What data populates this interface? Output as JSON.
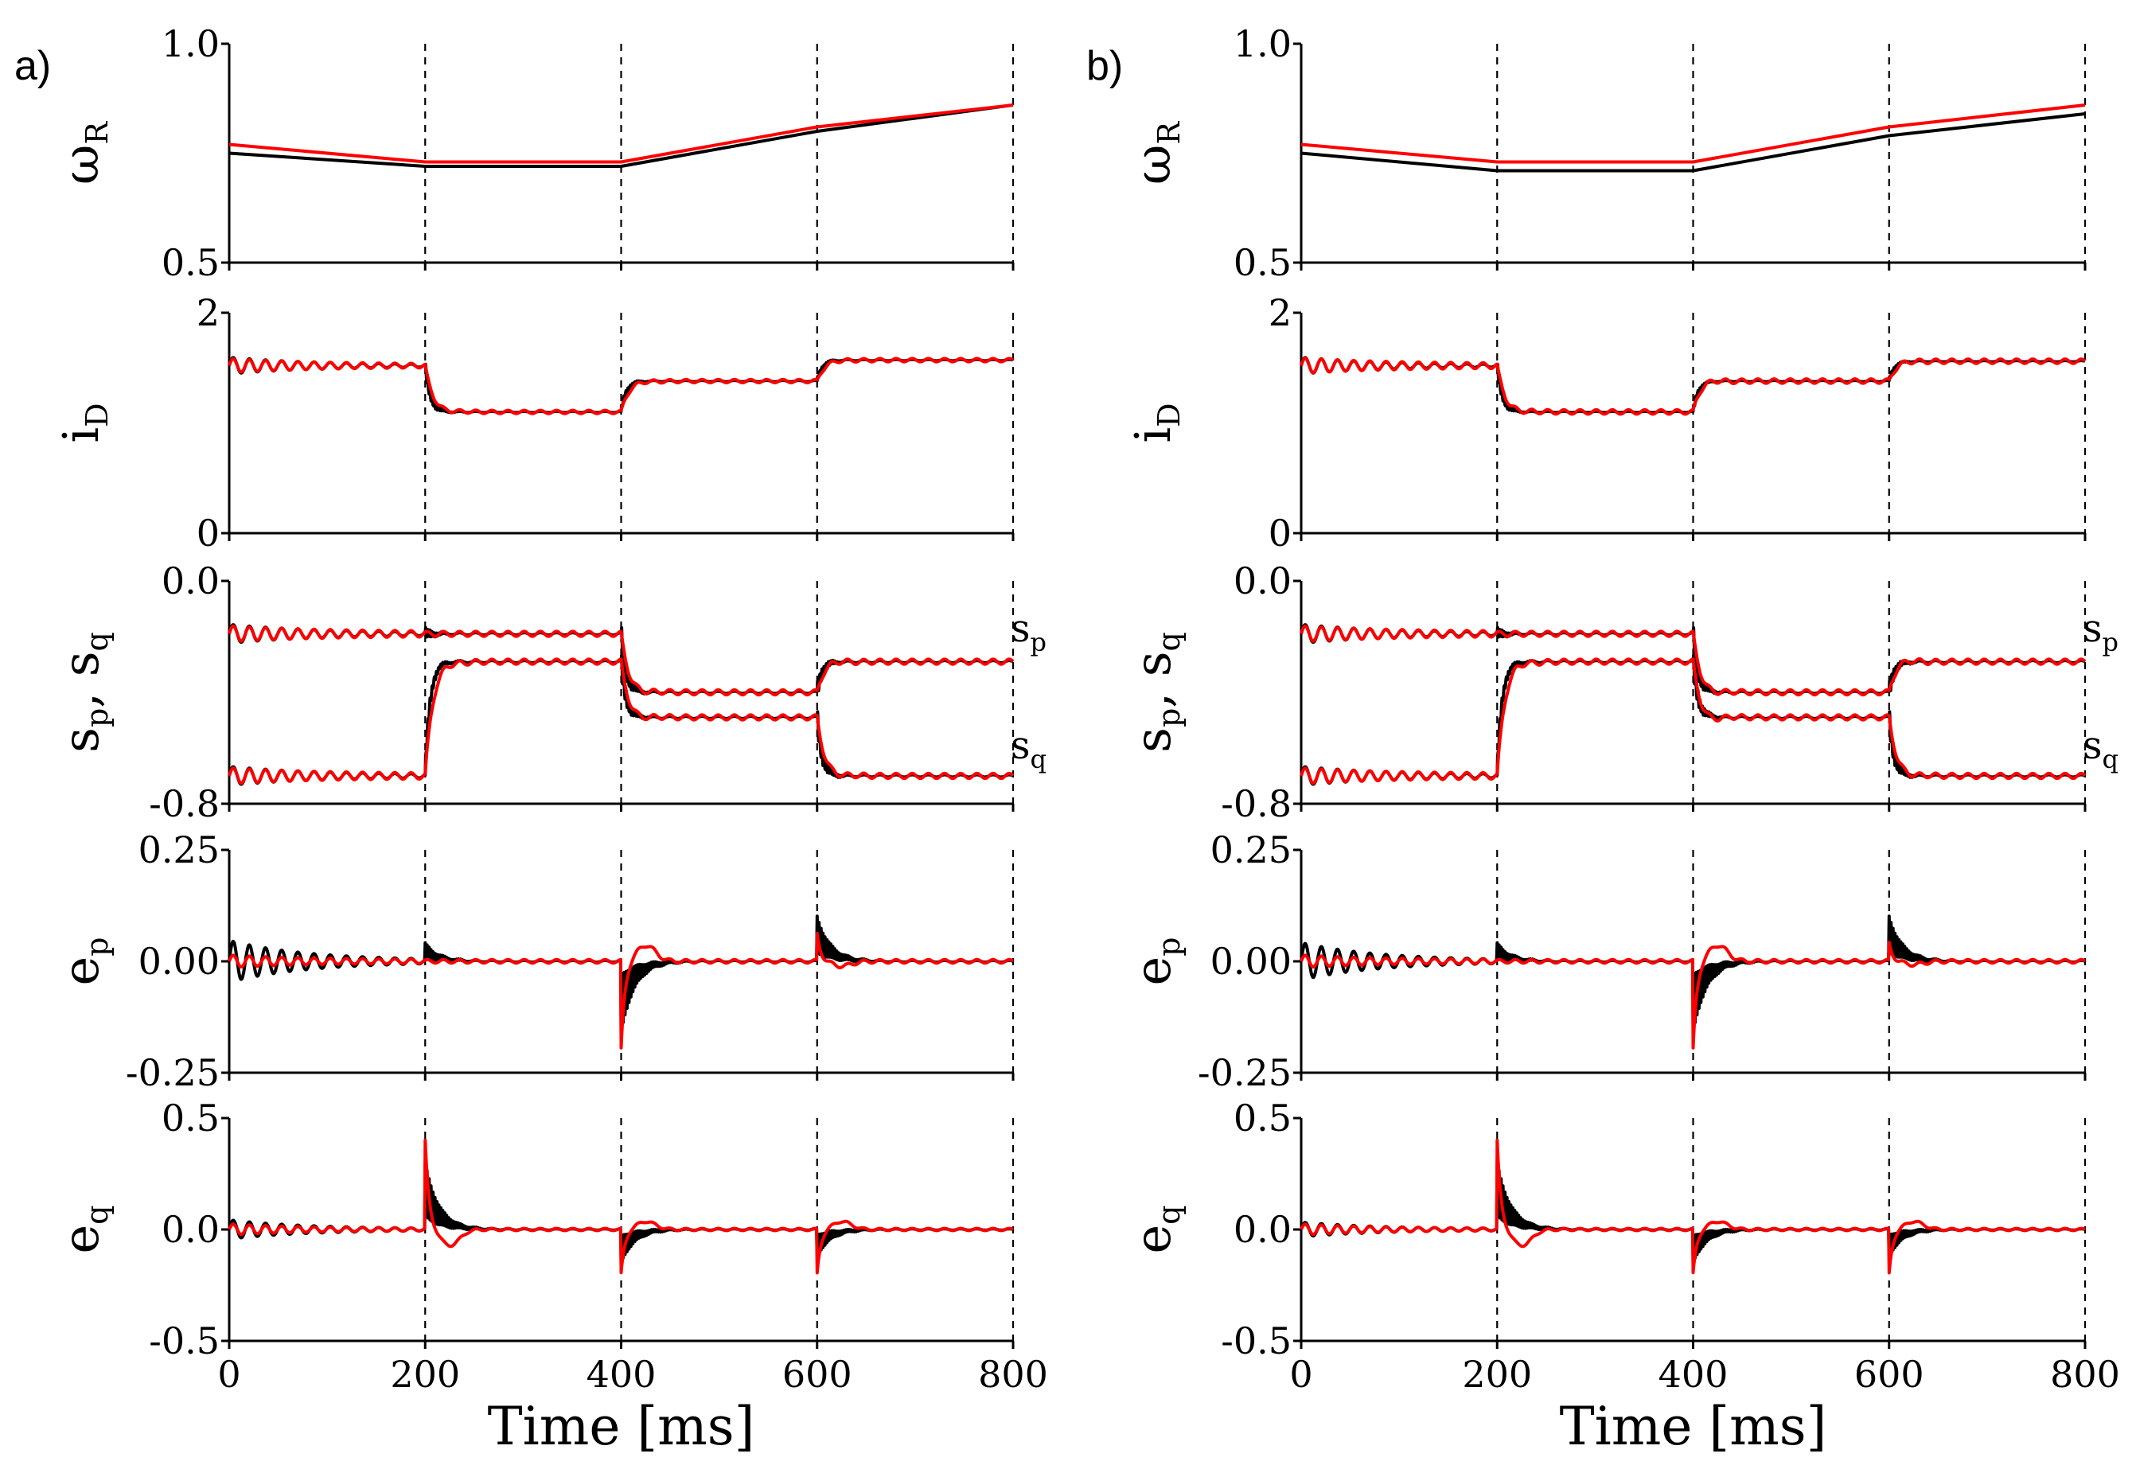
{
  "chart_data": {
    "type": "line",
    "x_label": "Time [ms]",
    "xlim": [
      0,
      800
    ],
    "x_ticks": [
      0,
      200,
      400,
      600,
      800
    ],
    "x_tick_labels": [
      "0",
      "200",
      "400",
      "600",
      "800"
    ],
    "switch_times": [
      200,
      400,
      600,
      800
    ],
    "series_colors": {
      "black": "#000000",
      "red": "#ff0000"
    },
    "panels": [
      {
        "label": "a)",
        "rows": [
          {
            "id": "omega",
            "ylabel_main": "ω",
            "ylabel_sub": "R",
            "ylim": [
              0.5,
              1.0
            ],
            "y_ticks": [
              0.5,
              1.0
            ],
            "y_tick_labels": [
              "0.5",
              "1.0"
            ],
            "series": [
              {
                "name": "black",
                "x": [
                  0,
                  200,
                  400,
                  600,
                  800
                ],
                "y": [
                  0.75,
                  0.72,
                  0.72,
                  0.8,
                  0.86
                ]
              },
              {
                "name": "red",
                "x": [
                  0,
                  200,
                  400,
                  600,
                  800
                ],
                "y": [
                  0.77,
                  0.73,
                  0.73,
                  0.81,
                  0.86
                ]
              }
            ]
          },
          {
            "id": "id",
            "ylabel_main": "i",
            "ylabel_sub": "D",
            "ylim": [
              0,
              2
            ],
            "y_ticks": [
              0,
              2
            ],
            "y_tick_labels": [
              "0",
              "2"
            ],
            "series": [
              {
                "name": "black",
                "levels": [
                  1.52,
                  1.1,
                  1.38,
                  1.57
                ],
                "init_amp": 0.07,
                "jump_amp": [
                  0.0,
                  0.05,
                  0.03,
                  0.02
                ],
                "ripple": 0.006
              },
              {
                "name": "red",
                "levels": [
                  1.52,
                  1.1,
                  1.38,
                  1.57
                ],
                "init_amp": 0.05,
                "jump_amp": [
                  0.0,
                  0.06,
                  0.04,
                  0.03
                ],
                "ripple": 0.015
              }
            ]
          },
          {
            "id": "spsq",
            "ylabel_main": "s",
            "ylabel_text": "s_p, s_q",
            "ylim": [
              -0.8,
              0.0
            ],
            "y_ticks": [
              -0.8,
              0.0
            ],
            "y_tick_labels": [
              "-0.8",
              "0.0"
            ],
            "series": [
              {
                "name": "black sp",
                "levels": [
                  -0.19,
                  -0.19,
                  -0.4,
                  -0.29
                ],
                "init_amp": 0.03,
                "jump_amp": [
                  0.0,
                  0.02,
                  0.04,
                  0.03
                ],
                "ripple": 0.004
              },
              {
                "name": "black sq",
                "levels": [
                  -0.7,
                  -0.29,
                  -0.49,
                  -0.7
                ],
                "init_amp": 0.03,
                "jump_amp": [
                  0.0,
                  0.03,
                  0.04,
                  0.04
                ],
                "ripple": 0.004
              },
              {
                "name": "red sp",
                "levels": [
                  -0.19,
                  -0.19,
                  -0.4,
                  -0.29
                ],
                "init_amp": 0.02,
                "jump_amp": [
                  0.0,
                  0.0,
                  0.04,
                  0.03
                ],
                "ripple": 0.009
              },
              {
                "name": "red sq",
                "levels": [
                  -0.7,
                  -0.29,
                  -0.49,
                  -0.7
                ],
                "init_amp": 0.02,
                "jump_amp": [
                  0.0,
                  0.05,
                  0.05,
                  0.04
                ],
                "ripple": 0.009
              }
            ],
            "annotations": [
              {
                "main": "s",
                "sub": "p",
                "x": 700,
                "y": -0.16
              },
              {
                "main": "s",
                "sub": "q",
                "x": 700,
                "y": -0.58
              }
            ]
          },
          {
            "id": "ep",
            "ylabel_main": "e",
            "ylabel_sub": "p",
            "ylim": [
              -0.25,
              0.25
            ],
            "y_ticks": [
              -0.25,
              0.0,
              0.25
            ],
            "y_tick_labels": [
              "-0.25",
              "0.00",
              "0.25"
            ],
            "series": [
              {
                "name": "black",
                "spikes": [
                  0.04,
                  -0.16,
                  0.1
                ],
                "init_amp": 0.045,
                "ripple": 0.002
              },
              {
                "name": "red",
                "spikes": [
                  0.0,
                  -0.2,
                  0.06
                ],
                "init_amp": 0.01,
                "ripple": 0.004
              }
            ]
          },
          {
            "id": "eq",
            "ylabel_main": "e",
            "ylabel_sub": "q",
            "ylim": [
              -0.5,
              0.5
            ],
            "y_ticks": [
              -0.5,
              0.0,
              0.5
            ],
            "y_tick_labels": [
              "-0.5",
              "0.0",
              "0.5"
            ],
            "series": [
              {
                "name": "black",
                "spikes": [
                  0.3,
                  -0.15,
                  -0.12
                ],
                "init_amp": 0.04,
                "ripple": 0.003
              },
              {
                "name": "red",
                "spikes": [
                  0.4,
                  -0.2,
                  -0.2
                ],
                "init_amp": 0.02,
                "ripple": 0.005
              }
            ]
          }
        ]
      },
      {
        "label": "b)",
        "rows": [
          {
            "id": "omega",
            "ylabel_main": "ω",
            "ylabel_sub": "R",
            "ylim": [
              0.5,
              1.0
            ],
            "y_ticks": [
              0.5,
              1.0
            ],
            "y_tick_labels": [
              "0.5",
              "1.0"
            ],
            "series": [
              {
                "name": "black",
                "x": [
                  0,
                  200,
                  400,
                  600,
                  800
                ],
                "y": [
                  0.75,
                  0.71,
                  0.71,
                  0.79,
                  0.84
                ]
              },
              {
                "name": "red",
                "x": [
                  0,
                  200,
                  400,
                  600,
                  800
                ],
                "y": [
                  0.77,
                  0.73,
                  0.73,
                  0.81,
                  0.86
                ]
              }
            ]
          },
          {
            "id": "id",
            "ylabel_main": "i",
            "ylabel_sub": "D",
            "ylim": [
              0,
              2
            ],
            "y_ticks": [
              0,
              2
            ],
            "y_tick_labels": [
              "0",
              "2"
            ],
            "series": [
              {
                "name": "black",
                "levels": [
                  1.52,
                  1.1,
                  1.38,
                  1.56
                ],
                "init_amp": 0.07,
                "jump_amp": [
                  0.0,
                  0.05,
                  0.03,
                  0.02
                ],
                "ripple": 0.006
              },
              {
                "name": "red",
                "levels": [
                  1.52,
                  1.1,
                  1.38,
                  1.56
                ],
                "init_amp": 0.05,
                "jump_amp": [
                  0.0,
                  0.07,
                  0.08,
                  0.04
                ],
                "ripple": 0.02
              }
            ]
          },
          {
            "id": "spsq",
            "ylabel_main": "s",
            "ylabel_text": "s_p, s_q",
            "ylim": [
              -0.8,
              0.0
            ],
            "y_ticks": [
              -0.8,
              0.0
            ],
            "y_tick_labels": [
              "-0.8",
              "0.0"
            ],
            "series": [
              {
                "name": "black sp",
                "levels": [
                  -0.19,
                  -0.19,
                  -0.4,
                  -0.29
                ],
                "init_amp": 0.03,
                "jump_amp": [
                  0.0,
                  0.02,
                  0.04,
                  0.03
                ],
                "ripple": 0.004
              },
              {
                "name": "black sq",
                "levels": [
                  -0.7,
                  -0.29,
                  -0.49,
                  -0.7
                ],
                "init_amp": 0.03,
                "jump_amp": [
                  0.0,
                  0.03,
                  0.04,
                  0.04
                ],
                "ripple": 0.004
              },
              {
                "name": "red sp",
                "levels": [
                  -0.19,
                  -0.19,
                  -0.4,
                  -0.29
                ],
                "init_amp": 0.02,
                "jump_amp": [
                  0.0,
                  0.0,
                  0.05,
                  0.04
                ],
                "ripple": 0.009
              },
              {
                "name": "red sq",
                "levels": [
                  -0.7,
                  -0.29,
                  -0.49,
                  -0.7
                ],
                "init_amp": 0.02,
                "jump_amp": [
                  0.0,
                  0.06,
                  0.07,
                  0.04
                ],
                "ripple": 0.009
              }
            ],
            "annotations": [
              {
                "main": "s",
                "sub": "p",
                "x": 700,
                "y": -0.16
              },
              {
                "main": "s",
                "sub": "q",
                "x": 700,
                "y": -0.58
              }
            ]
          },
          {
            "id": "ep",
            "ylabel_main": "e",
            "ylabel_sub": "p",
            "ylim": [
              -0.25,
              0.25
            ],
            "y_ticks": [
              -0.25,
              0.0,
              0.25
            ],
            "y_tick_labels": [
              "-0.25",
              "0.00",
              "0.25"
            ],
            "series": [
              {
                "name": "black",
                "spikes": [
                  0.04,
                  -0.16,
                  0.1
                ],
                "init_amp": 0.04,
                "ripple": 0.002
              },
              {
                "name": "red",
                "spikes": [
                  0.0,
                  -0.2,
                  0.04
                ],
                "init_amp": 0.01,
                "ripple": 0.004
              }
            ]
          },
          {
            "id": "eq",
            "ylabel_main": "e",
            "ylabel_sub": "q",
            "ylim": [
              -0.5,
              0.5
            ],
            "y_ticks": [
              -0.5,
              0.0,
              0.5
            ],
            "y_tick_labels": [
              "-0.5",
              "0.0",
              "0.5"
            ],
            "series": [
              {
                "name": "black",
                "spikes": [
                  0.3,
                  -0.15,
                  -0.12
                ],
                "init_amp": 0.03,
                "ripple": 0.003
              },
              {
                "name": "red",
                "spikes": [
                  0.4,
                  -0.2,
                  -0.2
                ],
                "init_amp": 0.02,
                "ripple": 0.005
              }
            ]
          }
        ]
      }
    ]
  }
}
